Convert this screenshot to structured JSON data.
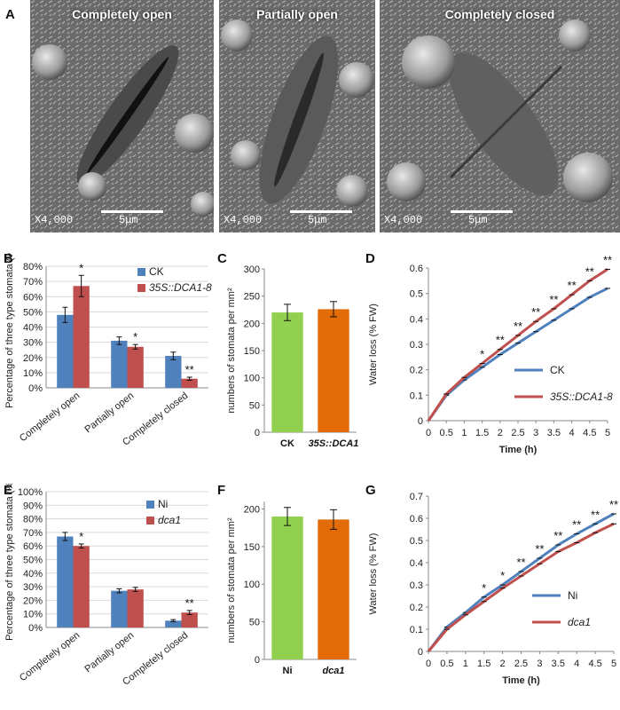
{
  "panelA": {
    "letter": "A",
    "images": [
      {
        "title": "Completely open",
        "magnification": "X4,000",
        "scale": "5μm"
      },
      {
        "title": "Partially open",
        "magnification": "X4,000",
        "scale": "5μm"
      },
      {
        "title": "Completely closed",
        "magnification": "X4,000",
        "scale": "5μm"
      }
    ]
  },
  "chart_data": [
    {
      "id": "B",
      "letter": "B",
      "type": "bar",
      "ylabel": "Percentage of  three type stomata (%)",
      "categories": [
        "Completely open",
        "Partially open",
        "Completely closed"
      ],
      "yticks": [
        "0%",
        "10%",
        "20%",
        "30%",
        "40%",
        "50%",
        "60%",
        "70%",
        "80%"
      ],
      "ylim": [
        0,
        80
      ],
      "series": [
        {
          "name": "CK",
          "color": "#4f81bd",
          "values": [
            48,
            31,
            21
          ],
          "errors": [
            5,
            2.5,
            2.5
          ]
        },
        {
          "name": "35S::DCA1-8",
          "color": "#c0504d",
          "values": [
            67,
            27,
            6
          ],
          "errors": [
            7,
            1.5,
            1
          ]
        }
      ],
      "significance": [
        "*",
        "*",
        "**"
      ],
      "legend": "top-right"
    },
    {
      "id": "C",
      "letter": "C",
      "type": "bar",
      "ylabel": "numbers of stomata per mm²",
      "categories": [
        "CK",
        "35S::DCA1"
      ],
      "yticks": [
        "0",
        "50",
        "100",
        "150",
        "200",
        "250",
        "300"
      ],
      "ylim": [
        0,
        300
      ],
      "values": [
        220,
        226
      ],
      "errors": [
        15,
        14
      ],
      "colors": [
        "#92d050",
        "#e36c09"
      ]
    },
    {
      "id": "D",
      "letter": "D",
      "type": "line",
      "xlabel": "Time (h)",
      "ylabel": "Water loss (% FW)",
      "x": [
        0,
        0.5,
        1,
        1.5,
        2,
        2.5,
        3,
        3.5,
        4,
        4.5,
        5
      ],
      "xticks": [
        "0",
        "0.5",
        "1",
        "1.5",
        "2",
        "2.5",
        "3",
        "3.5",
        "4",
        "4.5",
        "5"
      ],
      "yticks": [
        "0",
        "0.1",
        "0.2",
        "0.3",
        "0.4",
        "0.5",
        "0.6"
      ],
      "ylim": [
        0,
        0.6
      ],
      "series": [
        {
          "name": "CK",
          "color": "#4f81bd",
          "values": [
            0,
            0.1,
            0.16,
            0.21,
            0.26,
            0.305,
            0.35,
            0.395,
            0.44,
            0.485,
            0.52
          ]
        },
        {
          "name": "35S::DCA1-8",
          "color": "#c0504d",
          "values": [
            0,
            0.105,
            0.17,
            0.225,
            0.28,
            0.335,
            0.39,
            0.44,
            0.495,
            0.55,
            0.595
          ]
        }
      ],
      "significance": [
        "",
        "",
        "",
        "*",
        "**",
        "**",
        "**",
        "**",
        "**",
        "**",
        "**"
      ],
      "legend": "bottom-right"
    },
    {
      "id": "E",
      "letter": "E",
      "type": "bar",
      "ylabel": "Percentage of  three type stomata (%)",
      "categories": [
        "Completely open",
        "Partially open",
        "Completely closed"
      ],
      "yticks": [
        "0%",
        "10%",
        "20%",
        "30%",
        "40%",
        "50%",
        "60%",
        "70%",
        "80%",
        "90%",
        "100%"
      ],
      "ylim": [
        0,
        100
      ],
      "series": [
        {
          "name": "Ni",
          "color": "#4f81bd",
          "values": [
            67,
            27,
            5
          ],
          "errors": [
            3,
            1.5,
            0.8
          ]
        },
        {
          "name": "dca1",
          "color": "#c0504d",
          "values": [
            60,
            28,
            11
          ],
          "errors": [
            1.5,
            1.5,
            1.5
          ]
        }
      ],
      "significance": [
        "*",
        "",
        "**"
      ],
      "legend": "top-right"
    },
    {
      "id": "F",
      "letter": "F",
      "type": "bar",
      "ylabel": "numbers of stomata per mm²",
      "categories": [
        "Ni",
        "dca1"
      ],
      "yticks": [
        "0",
        "50",
        "100",
        "150",
        "200"
      ],
      "ylim": [
        0,
        210
      ],
      "values": [
        190,
        186
      ],
      "errors": [
        12,
        13
      ],
      "colors": [
        "#92d050",
        "#e36c09"
      ]
    },
    {
      "id": "G",
      "letter": "G",
      "type": "line",
      "xlabel": "Time (h)",
      "ylabel": "Water loss (% FW)",
      "x": [
        0,
        0.5,
        1,
        1.5,
        2,
        2.5,
        3,
        3.5,
        4,
        4.5,
        5
      ],
      "xticks": [
        "0",
        "0.5",
        "1",
        "1.5",
        "2",
        "2.5",
        "3",
        "3.5",
        "4",
        "4.5",
        "5"
      ],
      "yticks": [
        "0",
        "0.1",
        "0.2",
        "0.3",
        "0.4",
        "0.5",
        "0.6",
        "0.7"
      ],
      "ylim": [
        0,
        0.7
      ],
      "series": [
        {
          "name": "Ni",
          "color": "#4f81bd",
          "values": [
            0,
            0.11,
            0.175,
            0.245,
            0.3,
            0.36,
            0.42,
            0.48,
            0.53,
            0.575,
            0.62
          ]
        },
        {
          "name": "dca1",
          "color": "#c0504d",
          "values": [
            0,
            0.1,
            0.165,
            0.225,
            0.285,
            0.34,
            0.395,
            0.45,
            0.49,
            0.535,
            0.575
          ]
        }
      ],
      "significance": [
        "",
        "",
        "",
        "*",
        "*",
        "**",
        "**",
        "**",
        "**",
        "**",
        "**"
      ],
      "legend": "bottom-right"
    }
  ]
}
